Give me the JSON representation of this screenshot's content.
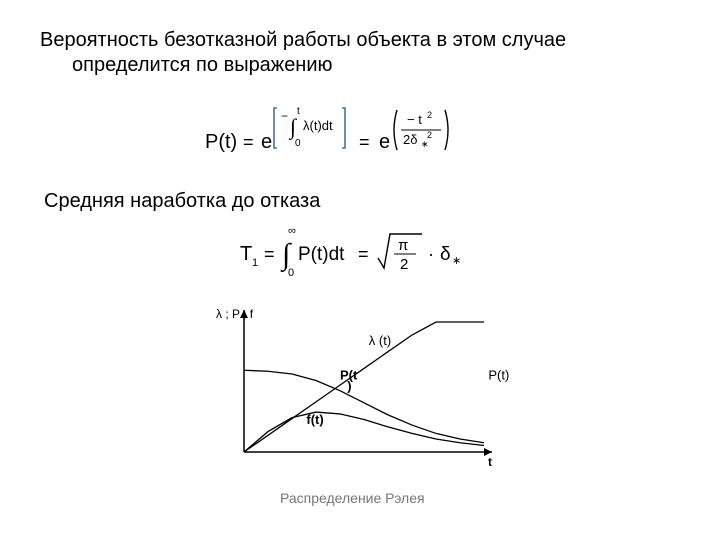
{
  "text": {
    "para1_line1": "Вероятность безотказной работы объекта в этом случае",
    "para1_line2": "определится по выражению",
    "para2": "Средняя наработка до отказа",
    "caption": "Распределение Рэлея"
  },
  "formula1": {
    "type": "equation",
    "latex": "P(t) = e^{-\\int_0^t \\lambda(t)dt} = e^{(-t^2 / 2\\delta_*^2)}",
    "color": "#000000",
    "fontsize": 18,
    "bracket_color": "#496fa8"
  },
  "formula2": {
    "type": "equation",
    "latex": "T_1 = \\int_0^{\\infty} P(t)dt = \\sqrt{\\pi/2} \\cdot \\delta_*",
    "color": "#000000",
    "fontsize": 18
  },
  "chart": {
    "type": "line",
    "background_color": "#ffffff",
    "axis_color": "#000000",
    "line_color": "#000000",
    "line_width": 1.3,
    "xlabel": "t",
    "ylabel": "λ ; P ; f",
    "label_fontsize": 12,
    "series_label_color": "#000000",
    "P_label_right_color": "#000000",
    "xlim": [
      0,
      10
    ],
    "ylim": [
      0,
      1.4
    ],
    "series": {
      "lambda": {
        "label": "λ (t)",
        "x": [
          0,
          1,
          2,
          3,
          4,
          5,
          6,
          7,
          8,
          9,
          10
        ],
        "y": [
          0,
          0.18,
          0.36,
          0.54,
          0.72,
          0.9,
          1.08,
          1.26,
          1.4,
          1.4,
          1.4
        ]
      },
      "P": {
        "label": "P(t)",
        "x": [
          0,
          1,
          2,
          3,
          4,
          5,
          6,
          7,
          8,
          9,
          10
        ],
        "y": [
          0.88,
          0.87,
          0.84,
          0.77,
          0.66,
          0.53,
          0.4,
          0.29,
          0.2,
          0.14,
          0.1
        ]
      },
      "f": {
        "label": "f(t)",
        "x": [
          0,
          1,
          2,
          3,
          4,
          5,
          6,
          7,
          8,
          9,
          10
        ],
        "y": [
          0,
          0.22,
          0.37,
          0.43,
          0.41,
          0.35,
          0.27,
          0.2,
          0.14,
          0.1,
          0.07
        ]
      }
    }
  }
}
